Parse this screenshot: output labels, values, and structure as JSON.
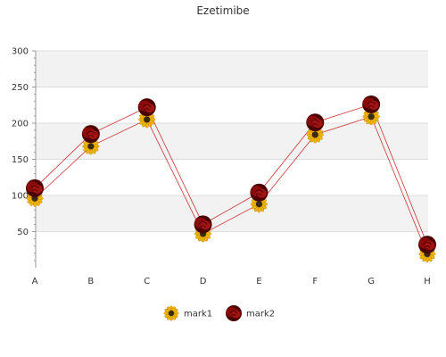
{
  "chart_data": {
    "type": "line",
    "title": "Ezetimibe",
    "xlabel": "",
    "ylabel": "",
    "categories": [
      "A",
      "B",
      "C",
      "D",
      "E",
      "F",
      "G",
      "H"
    ],
    "ylim": [
      0,
      300
    ],
    "yticks": [
      50,
      100,
      150,
      200,
      250,
      300
    ],
    "grid": "horizontal bands",
    "legend_position": "bottom",
    "series": [
      {
        "name": "mark1",
        "marker": "sunflower-icon",
        "values": [
          96,
          168,
          205,
          47,
          88,
          184,
          209,
          19
        ]
      },
      {
        "name": "mark2",
        "marker": "rose-icon",
        "values": [
          110,
          185,
          222,
          60,
          104,
          201,
          226,
          32
        ]
      }
    ]
  },
  "colors": {
    "line": "#cc3333",
    "band": "#f2f2f2",
    "gridline": "#dddddd",
    "axis": "#999999",
    "sunflower_petal": "#f0b400",
    "sunflower_center": "#3a2a10",
    "rose": "#8b0b0b",
    "rose_dark": "#4a0000"
  }
}
